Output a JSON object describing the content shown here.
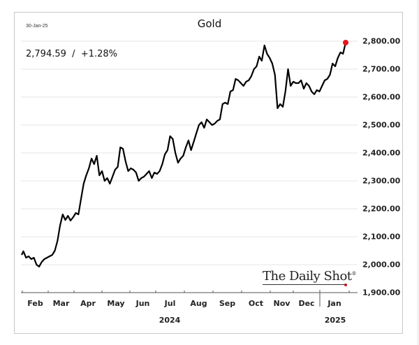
{
  "header": {
    "date": "30-Jan-25",
    "title": "Gold",
    "value_change": "2,794.59  /  +1.28%"
  },
  "branding": {
    "text": "The Daily Shot",
    "mark": "®"
  },
  "colors": {
    "line": "#000000",
    "latest_marker": "#e8131b",
    "grid": "#e6e6e6",
    "frame": "#c8c8c8"
  },
  "chart_data": {
    "type": "line",
    "title": "Gold",
    "subtitle": "2,794.59 / +1.28%",
    "annotation_date": "30-Jan-25",
    "xlabel": "",
    "ylabel": "",
    "ylim": [
      1900,
      2800
    ],
    "grid": true,
    "legend": "none",
    "yticks": [
      "2,800.00",
      "2,700.00",
      "2,600.00",
      "2,500.00",
      "2,400.00",
      "2,300.00",
      "2,200.00",
      "2,100.00",
      "2,000.00",
      "1,900.00"
    ],
    "xticks": [
      "Feb",
      "Mar",
      "Apr",
      "May",
      "Jun",
      "Jul",
      "Aug",
      "Sep",
      "Oct",
      "Nov",
      "Dec",
      "Jan"
    ],
    "year_labels": [
      "2024",
      "2025"
    ],
    "latest_point": {
      "date": "30-Jan-25",
      "value": 2794.59,
      "change_pct": 1.28
    },
    "series": [
      {
        "name": "Gold",
        "x": [
          "2024-01-25",
          "2024-01-27",
          "2024-01-30",
          "2024-02-02",
          "2024-02-05",
          "2024-02-08",
          "2024-02-11",
          "2024-02-14",
          "2024-02-17",
          "2024-02-20",
          "2024-02-23",
          "2024-02-26",
          "2024-02-29",
          "2024-03-03",
          "2024-03-06",
          "2024-03-09",
          "2024-03-12",
          "2024-03-15",
          "2024-03-18",
          "2024-03-21",
          "2024-03-24",
          "2024-03-27",
          "2024-03-30",
          "2024-04-02",
          "2024-04-05",
          "2024-04-08",
          "2024-04-11",
          "2024-04-14",
          "2024-04-17",
          "2024-04-20",
          "2024-04-23",
          "2024-04-26",
          "2024-04-29",
          "2024-05-02",
          "2024-05-05",
          "2024-05-08",
          "2024-05-11",
          "2024-05-14",
          "2024-05-17",
          "2024-05-20",
          "2024-05-23",
          "2024-05-26",
          "2024-05-29",
          "2024-06-01",
          "2024-06-04",
          "2024-06-07",
          "2024-06-10",
          "2024-06-13",
          "2024-06-16",
          "2024-06-19",
          "2024-06-22",
          "2024-06-25",
          "2024-06-28",
          "2024-07-01",
          "2024-07-04",
          "2024-07-07",
          "2024-07-10",
          "2024-07-13",
          "2024-07-16",
          "2024-07-19",
          "2024-07-22",
          "2024-07-25",
          "2024-07-28",
          "2024-07-31",
          "2024-08-03",
          "2024-08-06",
          "2024-08-09",
          "2024-08-12",
          "2024-08-15",
          "2024-08-18",
          "2024-08-21",
          "2024-08-24",
          "2024-08-27",
          "2024-08-30",
          "2024-09-02",
          "2024-09-05",
          "2024-09-08",
          "2024-09-11",
          "2024-09-14",
          "2024-09-17",
          "2024-09-20",
          "2024-09-23",
          "2024-09-26",
          "2024-09-29",
          "2024-10-02",
          "2024-10-05",
          "2024-10-08",
          "2024-10-11",
          "2024-10-14",
          "2024-10-17",
          "2024-10-20",
          "2024-10-23",
          "2024-10-26",
          "2024-10-29",
          "2024-11-01",
          "2024-11-04",
          "2024-11-07",
          "2024-11-10",
          "2024-11-13",
          "2024-11-16",
          "2024-11-19",
          "2024-11-22",
          "2024-11-25",
          "2024-11-28",
          "2024-12-01",
          "2024-12-04",
          "2024-12-07",
          "2024-12-10",
          "2024-12-13",
          "2024-12-16",
          "2024-12-19",
          "2024-12-22",
          "2024-12-25",
          "2024-12-28",
          "2024-12-31",
          "2025-01-03",
          "2025-01-06",
          "2025-01-09",
          "2025-01-12",
          "2025-01-15",
          "2025-01-18",
          "2025-01-21",
          "2025-01-24",
          "2025-01-27",
          "2025-01-30"
        ],
        "values": [
          2035,
          2048,
          2025,
          2030,
          2020,
          2025,
          2000,
          1993,
          2010,
          2020,
          2025,
          2030,
          2035,
          2050,
          2085,
          2140,
          2180,
          2160,
          2175,
          2158,
          2170,
          2185,
          2180,
          2235,
          2290,
          2320,
          2345,
          2380,
          2360,
          2390,
          2320,
          2335,
          2300,
          2310,
          2290,
          2315,
          2340,
          2350,
          2420,
          2415,
          2370,
          2335,
          2345,
          2340,
          2330,
          2300,
          2310,
          2315,
          2325,
          2335,
          2310,
          2330,
          2325,
          2335,
          2360,
          2395,
          2410,
          2460,
          2450,
          2400,
          2365,
          2380,
          2390,
          2420,
          2445,
          2410,
          2440,
          2470,
          2500,
          2510,
          2490,
          2520,
          2510,
          2500,
          2505,
          2515,
          2520,
          2575,
          2580,
          2575,
          2620,
          2625,
          2665,
          2660,
          2650,
          2640,
          2655,
          2660,
          2675,
          2700,
          2710,
          2745,
          2730,
          2785,
          2755,
          2740,
          2720,
          2680,
          2560,
          2575,
          2565,
          2620,
          2700,
          2640,
          2655,
          2650,
          2650,
          2660,
          2630,
          2650,
          2640,
          2620,
          2610,
          2625,
          2620,
          2640,
          2660,
          2665,
          2680,
          2720,
          2710,
          2740,
          2760,
          2755,
          2795
        ]
      }
    ]
  }
}
